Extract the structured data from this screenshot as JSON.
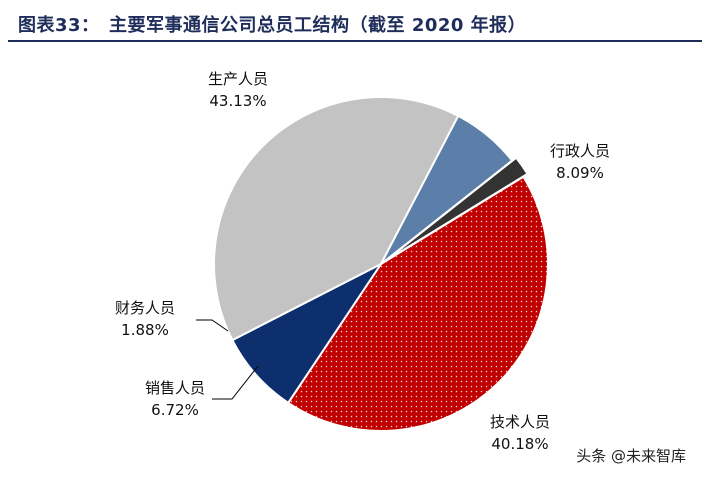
{
  "title": "图表33：　主要军事通信公司总员工结构（截至 2020 年报）",
  "watermark": "头条 @未来智库",
  "chart_data": {
    "type": "pie",
    "title": "主要军事通信公司总员工结构（截至 2020 年报）",
    "slices": [
      {
        "label": "生产人员",
        "value": 43.13,
        "display": "43.13%",
        "color": "#c00000",
        "pattern": "dotted"
      },
      {
        "label": "行政人员",
        "value": 8.09,
        "display": "8.09%",
        "color": "#0d2f6e"
      },
      {
        "label": "技术人员",
        "value": 40.18,
        "display": "40.18%",
        "color": "#c3c3c3"
      },
      {
        "label": "销售人员",
        "value": 6.72,
        "display": "6.72%",
        "color": "#5b7fa8"
      },
      {
        "label": "财务人员",
        "value": 1.88,
        "display": "1.88%",
        "color": "#333333"
      }
    ]
  }
}
